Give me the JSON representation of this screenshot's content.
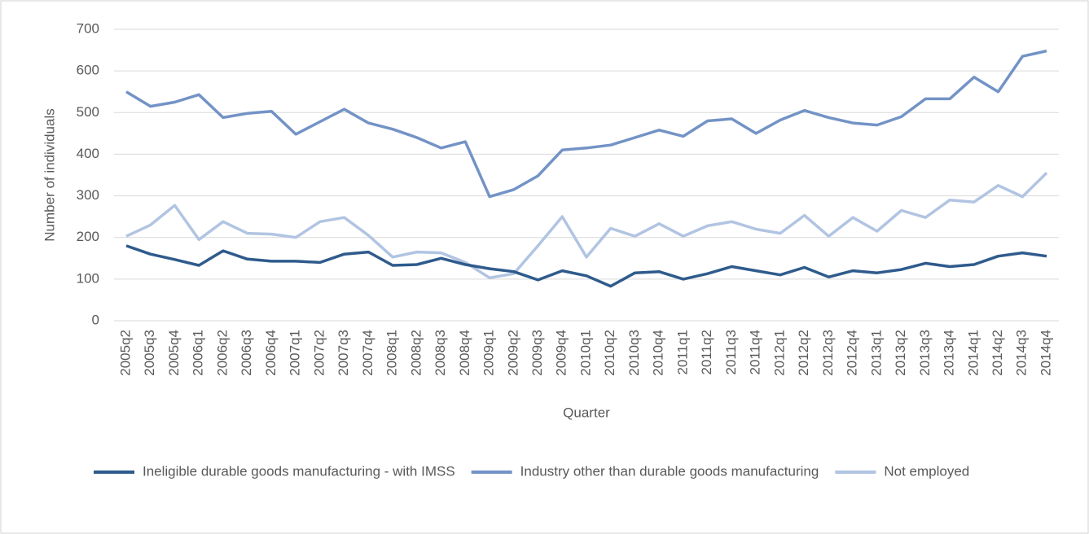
{
  "chart_data": {
    "type": "line",
    "x_label": "Quarter",
    "y_label": "Number of individuals",
    "categories": [
      "2005q2",
      "2005q3",
      "2005q4",
      "2006q1",
      "2006q2",
      "2006q3",
      "2006q4",
      "2007q1",
      "2007q2",
      "2007q3",
      "2007q4",
      "2008q1",
      "2008q2",
      "2008q3",
      "2008q4",
      "2009q1",
      "2009q2",
      "2009q3",
      "2009q4",
      "2010q1",
      "2010q2",
      "2010q3",
      "2010q4",
      "2011q1",
      "2011q2",
      "2011q3",
      "2011q4",
      "2012q1",
      "2012q2",
      "2012q3",
      "2012q4",
      "2013q1",
      "2013q2",
      "2013q3",
      "2013q4",
      "2014q1",
      "2014q2",
      "2014q3",
      "2014q4"
    ],
    "series": [
      {
        "name": "Ineligible durable goods manufacturing - with IMSS",
        "color": "#2f5b8c",
        "values": [
          180,
          160,
          147,
          133,
          168,
          148,
          143,
          143,
          140,
          160,
          165,
          133,
          135,
          150,
          135,
          125,
          118,
          98,
          120,
          108,
          83,
          115,
          118,
          100,
          113,
          130,
          120,
          110,
          128,
          105,
          120,
          115,
          123,
          138,
          130,
          135,
          155,
          163,
          155
        ]
      },
      {
        "name": "Industry other than durable goods manufacturing",
        "color": "#7393c6",
        "values": [
          550,
          515,
          525,
          543,
          488,
          498,
          503,
          448,
          478,
          508,
          475,
          460,
          440,
          415,
          430,
          298,
          315,
          348,
          410,
          415,
          422,
          440,
          458,
          443,
          480,
          485,
          450,
          482,
          505,
          488,
          475,
          470,
          490,
          533,
          533,
          585,
          550,
          635,
          648
        ]
      },
      {
        "name": "Not employed",
        "color": "#b1c4e2",
        "values": [
          203,
          230,
          277,
          195,
          238,
          210,
          208,
          200,
          238,
          248,
          205,
          153,
          165,
          163,
          140,
          103,
          113,
          180,
          250,
          153,
          222,
          203,
          233,
          203,
          228,
          238,
          220,
          210,
          253,
          203,
          248,
          215,
          265,
          248,
          290,
          285,
          325,
          298,
          355
        ]
      }
    ],
    "ylim": [
      0,
      700
    ],
    "yticks": [
      0,
      100,
      200,
      300,
      400,
      500,
      600,
      700
    ],
    "grid": true,
    "legend": "bottom"
  }
}
